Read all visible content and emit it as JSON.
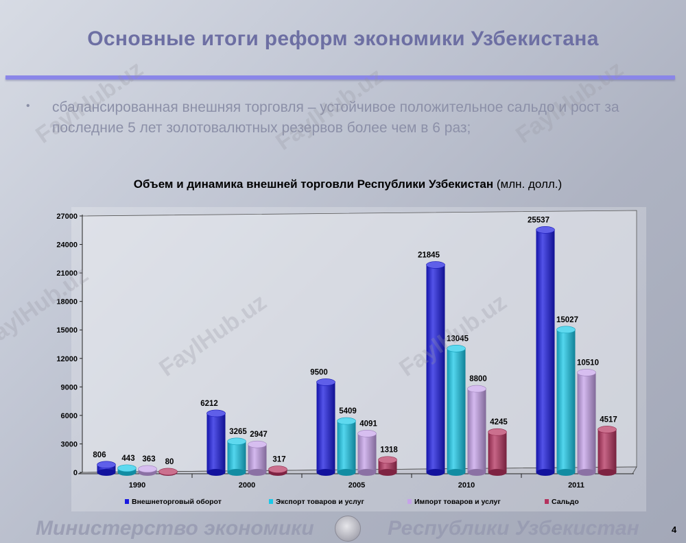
{
  "slide": {
    "title": "Основные итоги реформ экономики Узбекистана",
    "bullet_symbol": "•",
    "bullet_text": "сбалансированная внешняя торговля – устойчивое положительное сальдо и рост  за последние 5 лет золотовалютных резервов более чем в 6 раз;",
    "chart_heading_bold": "Объем и динамика внешней торговли Республики Узбекистан",
    "chart_heading_unit": " (млн. долл.)",
    "footer_left": "Министерство экономики",
    "footer_right": "Республики Узбекистан",
    "page_number": "4",
    "watermark_text": "FaylHub.uz"
  },
  "chart_data": {
    "type": "bar",
    "categories": [
      "1990",
      "2000",
      "2005",
      "2010",
      "2011"
    ],
    "ylim": [
      0,
      27000
    ],
    "yticks": [
      "0",
      "3000",
      "6000",
      "9000",
      "12000",
      "15000",
      "18000",
      "21000",
      "24000",
      "27000"
    ],
    "series": [
      {
        "name": "Внешнеторговый оборот",
        "values": [
          806,
          6212,
          9500,
          21845,
          25537
        ],
        "color": "#1a1ae0"
      },
      {
        "name": "Экспорт товаров и услуг",
        "values": [
          443,
          3265,
          5409,
          13045,
          15027
        ],
        "color": "#19c8e8"
      },
      {
        "name": "Импорт товаров и услуг",
        "values": [
          363,
          2947,
          4091,
          8800,
          10510
        ],
        "color": "#c6a2ea"
      },
      {
        "name": "Сальдо",
        "values": [
          80,
          317,
          1318,
          4245,
          4517
        ],
        "color": "#b4325e"
      }
    ],
    "grid": false,
    "legend": "bottom"
  }
}
